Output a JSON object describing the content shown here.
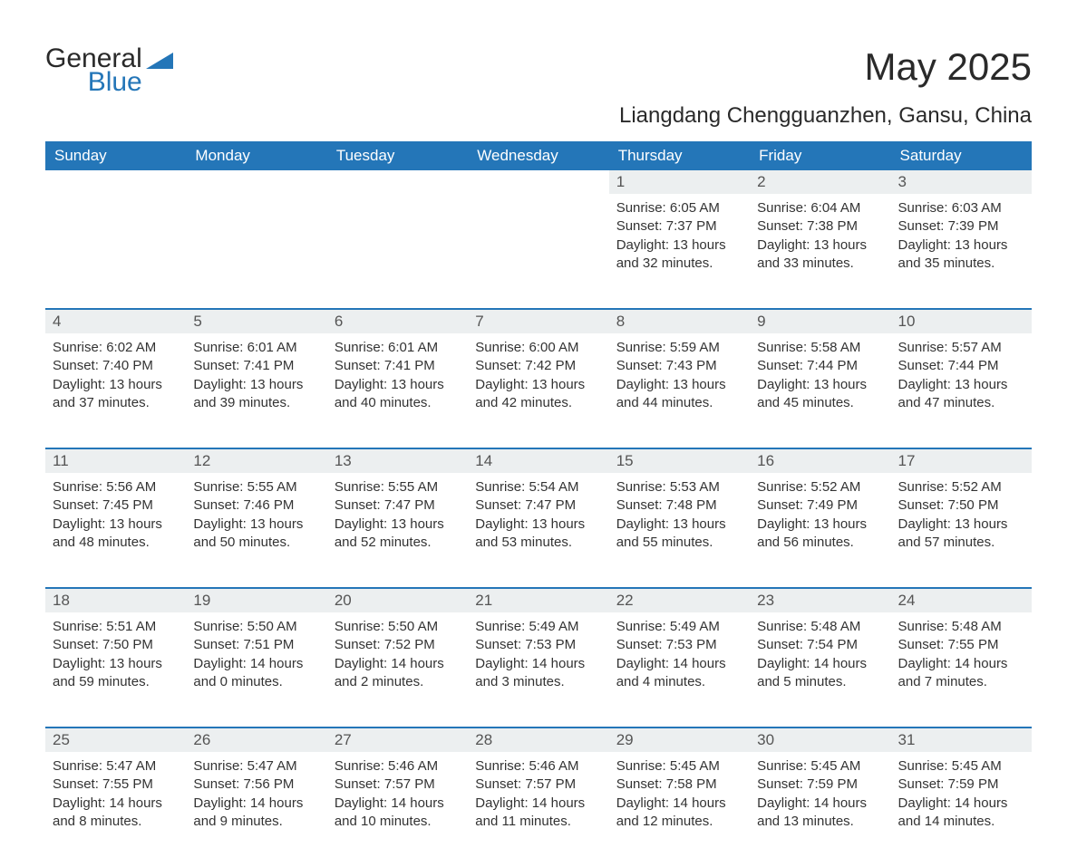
{
  "logo": {
    "text1": "General",
    "text2": "Blue",
    "icon_color": "#2476b8"
  },
  "title": "May 2025",
  "subtitle": "Liangdang Chengguanzhen, Gansu, China",
  "colors": {
    "header_bg": "#2476b8",
    "header_text": "#ffffff",
    "daynum_bg": "#eceff0",
    "text": "#333333",
    "border": "#2476b8"
  },
  "fonts": {
    "title_size": 42,
    "subtitle_size": 24,
    "weekday_size": 17,
    "body_size": 15
  },
  "weekdays": [
    "Sunday",
    "Monday",
    "Tuesday",
    "Wednesday",
    "Thursday",
    "Friday",
    "Saturday"
  ],
  "weeks": [
    [
      null,
      null,
      null,
      null,
      {
        "n": "1",
        "sunrise": "6:05 AM",
        "sunset": "7:37 PM",
        "daylight": "13 hours and 32 minutes."
      },
      {
        "n": "2",
        "sunrise": "6:04 AM",
        "sunset": "7:38 PM",
        "daylight": "13 hours and 33 minutes."
      },
      {
        "n": "3",
        "sunrise": "6:03 AM",
        "sunset": "7:39 PM",
        "daylight": "13 hours and 35 minutes."
      }
    ],
    [
      {
        "n": "4",
        "sunrise": "6:02 AM",
        "sunset": "7:40 PM",
        "daylight": "13 hours and 37 minutes."
      },
      {
        "n": "5",
        "sunrise": "6:01 AM",
        "sunset": "7:41 PM",
        "daylight": "13 hours and 39 minutes."
      },
      {
        "n": "6",
        "sunrise": "6:01 AM",
        "sunset": "7:41 PM",
        "daylight": "13 hours and 40 minutes."
      },
      {
        "n": "7",
        "sunrise": "6:00 AM",
        "sunset": "7:42 PM",
        "daylight": "13 hours and 42 minutes."
      },
      {
        "n": "8",
        "sunrise": "5:59 AM",
        "sunset": "7:43 PM",
        "daylight": "13 hours and 44 minutes."
      },
      {
        "n": "9",
        "sunrise": "5:58 AM",
        "sunset": "7:44 PM",
        "daylight": "13 hours and 45 minutes."
      },
      {
        "n": "10",
        "sunrise": "5:57 AM",
        "sunset": "7:44 PM",
        "daylight": "13 hours and 47 minutes."
      }
    ],
    [
      {
        "n": "11",
        "sunrise": "5:56 AM",
        "sunset": "7:45 PM",
        "daylight": "13 hours and 48 minutes."
      },
      {
        "n": "12",
        "sunrise": "5:55 AM",
        "sunset": "7:46 PM",
        "daylight": "13 hours and 50 minutes."
      },
      {
        "n": "13",
        "sunrise": "5:55 AM",
        "sunset": "7:47 PM",
        "daylight": "13 hours and 52 minutes."
      },
      {
        "n": "14",
        "sunrise": "5:54 AM",
        "sunset": "7:47 PM",
        "daylight": "13 hours and 53 minutes."
      },
      {
        "n": "15",
        "sunrise": "5:53 AM",
        "sunset": "7:48 PM",
        "daylight": "13 hours and 55 minutes."
      },
      {
        "n": "16",
        "sunrise": "5:52 AM",
        "sunset": "7:49 PM",
        "daylight": "13 hours and 56 minutes."
      },
      {
        "n": "17",
        "sunrise": "5:52 AM",
        "sunset": "7:50 PM",
        "daylight": "13 hours and 57 minutes."
      }
    ],
    [
      {
        "n": "18",
        "sunrise": "5:51 AM",
        "sunset": "7:50 PM",
        "daylight": "13 hours and 59 minutes."
      },
      {
        "n": "19",
        "sunrise": "5:50 AM",
        "sunset": "7:51 PM",
        "daylight": "14 hours and 0 minutes."
      },
      {
        "n": "20",
        "sunrise": "5:50 AM",
        "sunset": "7:52 PM",
        "daylight": "14 hours and 2 minutes."
      },
      {
        "n": "21",
        "sunrise": "5:49 AM",
        "sunset": "7:53 PM",
        "daylight": "14 hours and 3 minutes."
      },
      {
        "n": "22",
        "sunrise": "5:49 AM",
        "sunset": "7:53 PM",
        "daylight": "14 hours and 4 minutes."
      },
      {
        "n": "23",
        "sunrise": "5:48 AM",
        "sunset": "7:54 PM",
        "daylight": "14 hours and 5 minutes."
      },
      {
        "n": "24",
        "sunrise": "5:48 AM",
        "sunset": "7:55 PM",
        "daylight": "14 hours and 7 minutes."
      }
    ],
    [
      {
        "n": "25",
        "sunrise": "5:47 AM",
        "sunset": "7:55 PM",
        "daylight": "14 hours and 8 minutes."
      },
      {
        "n": "26",
        "sunrise": "5:47 AM",
        "sunset": "7:56 PM",
        "daylight": "14 hours and 9 minutes."
      },
      {
        "n": "27",
        "sunrise": "5:46 AM",
        "sunset": "7:57 PM",
        "daylight": "14 hours and 10 minutes."
      },
      {
        "n": "28",
        "sunrise": "5:46 AM",
        "sunset": "7:57 PM",
        "daylight": "14 hours and 11 minutes."
      },
      {
        "n": "29",
        "sunrise": "5:45 AM",
        "sunset": "7:58 PM",
        "daylight": "14 hours and 12 minutes."
      },
      {
        "n": "30",
        "sunrise": "5:45 AM",
        "sunset": "7:59 PM",
        "daylight": "14 hours and 13 minutes."
      },
      {
        "n": "31",
        "sunrise": "5:45 AM",
        "sunset": "7:59 PM",
        "daylight": "14 hours and 14 minutes."
      }
    ]
  ],
  "labels": {
    "sunrise": "Sunrise: ",
    "sunset": "Sunset: ",
    "daylight": "Daylight: "
  }
}
